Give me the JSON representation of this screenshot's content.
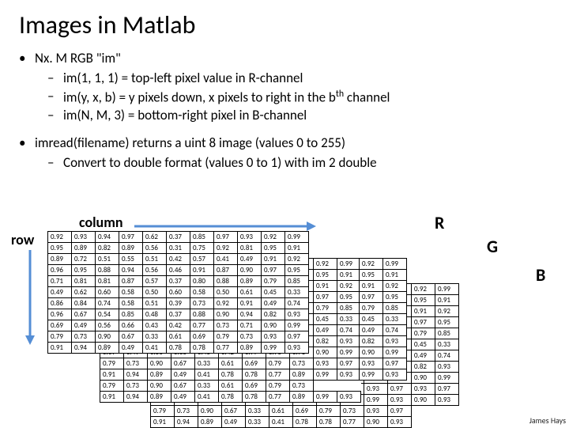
{
  "title": "Images in Matlab",
  "bullet1": "Nx. M RGB \"im\"",
  "sub1a": "im(1, 1, 1) = top-left pixel value in R-channel",
  "sub1b_pre": "im(y, x, b) = y pixels down, x pixels to right in the b",
  "sub1b_sup": "th",
  "sub1b_post": " channel",
  "sub1c": "im(N, M, 3) = bottom-right pixel in B-channel",
  "bullet2": "imread(filename) returns a uint 8 image (values 0 to 255)",
  "sub2a": "Convert to double format (values 0 to 1) with im 2 double",
  "row_label": "row",
  "col_label": "column",
  "r_label": "R",
  "g_label": "G",
  "b_label": "B",
  "credit": "James Hays",
  "r_table": [
    [
      "0.92",
      "0.93",
      "0.94",
      "0.97",
      "0.62",
      "0.37",
      "0.85",
      "0.97",
      "0.93",
      "0.92",
      "0.99"
    ],
    [
      "0.95",
      "0.89",
      "0.82",
      "0.89",
      "0.56",
      "0.31",
      "0.75",
      "0.92",
      "0.81",
      "0.95",
      "0.91"
    ],
    [
      "0.89",
      "0.72",
      "0.51",
      "0.55",
      "0.51",
      "0.42",
      "0.57",
      "0.41",
      "0.49",
      "0.91",
      "0.92"
    ],
    [
      "0.96",
      "0.95",
      "0.88",
      "0.94",
      "0.56",
      "0.46",
      "0.91",
      "0.87",
      "0.90",
      "0.97",
      "0.95"
    ],
    [
      "0.71",
      "0.81",
      "0.81",
      "0.87",
      "0.57",
      "0.37",
      "0.80",
      "0.88",
      "0.89",
      "0.79",
      "0.85"
    ],
    [
      "0.49",
      "0.62",
      "0.60",
      "0.58",
      "0.50",
      "0.60",
      "0.58",
      "0.50",
      "0.61",
      "0.45",
      "0.33"
    ],
    [
      "0.86",
      "0.84",
      "0.74",
      "0.58",
      "0.51",
      "0.39",
      "0.73",
      "0.92",
      "0.91",
      "0.49",
      "0.74"
    ],
    [
      "0.96",
      "0.67",
      "0.54",
      "0.85",
      "0.48",
      "0.37",
      "0.88",
      "0.90",
      "0.94",
      "0.82",
      "0.93"
    ],
    [
      "0.69",
      "0.49",
      "0.56",
      "0.66",
      "0.43",
      "0.42",
      "0.77",
      "0.73",
      "0.71",
      "0.90",
      "0.99"
    ],
    [
      "0.79",
      "0.73",
      "0.90",
      "0.67",
      "0.33",
      "0.61",
      "0.69",
      "0.79",
      "0.73",
      "0.93",
      "0.97"
    ],
    [
      "0.91",
      "0.94",
      "0.89",
      "0.49",
      "0.41",
      "0.78",
      "0.78",
      "0.77",
      "0.89",
      "0.99",
      "0.93"
    ]
  ],
  "g_table": [
    [
      "0.92",
      "0.99"
    ],
    [
      "0.95",
      "0.91"
    ],
    [
      "0.91",
      "0.92"
    ],
    [
      "0.97",
      "0.95"
    ],
    [
      "0.79",
      "0.85"
    ],
    [
      "0.45",
      "0.33"
    ],
    [
      "0.49",
      "0.74"
    ],
    [
      "0.82",
      "0.93"
    ],
    [
      "0.90",
      "0.99"
    ],
    [
      "0.93",
      "0.97"
    ],
    [
      "0.99",
      "0.93"
    ]
  ],
  "b_table": [
    [
      "0.92",
      "0.99"
    ],
    [
      "0.95",
      "0.91"
    ],
    [
      "0.91",
      "0.92"
    ],
    [
      "0.97",
      "0.95"
    ],
    [
      "0.79",
      "0.85"
    ],
    [
      "0.45",
      "0.33"
    ],
    [
      "0.49",
      "0.74"
    ],
    [
      "0.82",
      "0.93"
    ],
    [
      "0.90",
      "0.99"
    ],
    [
      "0.93",
      "0.97"
    ],
    [
      "0.90",
      "0.93"
    ]
  ],
  "bottom_rows_g": [
    [
      "0.79",
      "0.73",
      "0.90",
      "0.67",
      "0.33",
      "0.61",
      "0.69",
      "0.79",
      "0.73"
    ],
    [
      "0.91",
      "0.94",
      "0.89",
      "0.49",
      "0.41",
      "0.78",
      "0.78",
      "0.77",
      "0.89",
      "0.99",
      "0.93"
    ]
  ],
  "bottom_rows_b": [
    [
      "0.79",
      "0.73",
      "0.90",
      "0.67",
      "0.33",
      "0.61",
      "0.69",
      "0.79",
      "0.73",
      "0.93",
      "0.97"
    ],
    [
      "0.91",
      "0.94",
      "0.89",
      "0.49",
      "0.33",
      "0.41",
      "0.78",
      "0.78",
      "0.77",
      "0.90",
      "0.93"
    ]
  ]
}
